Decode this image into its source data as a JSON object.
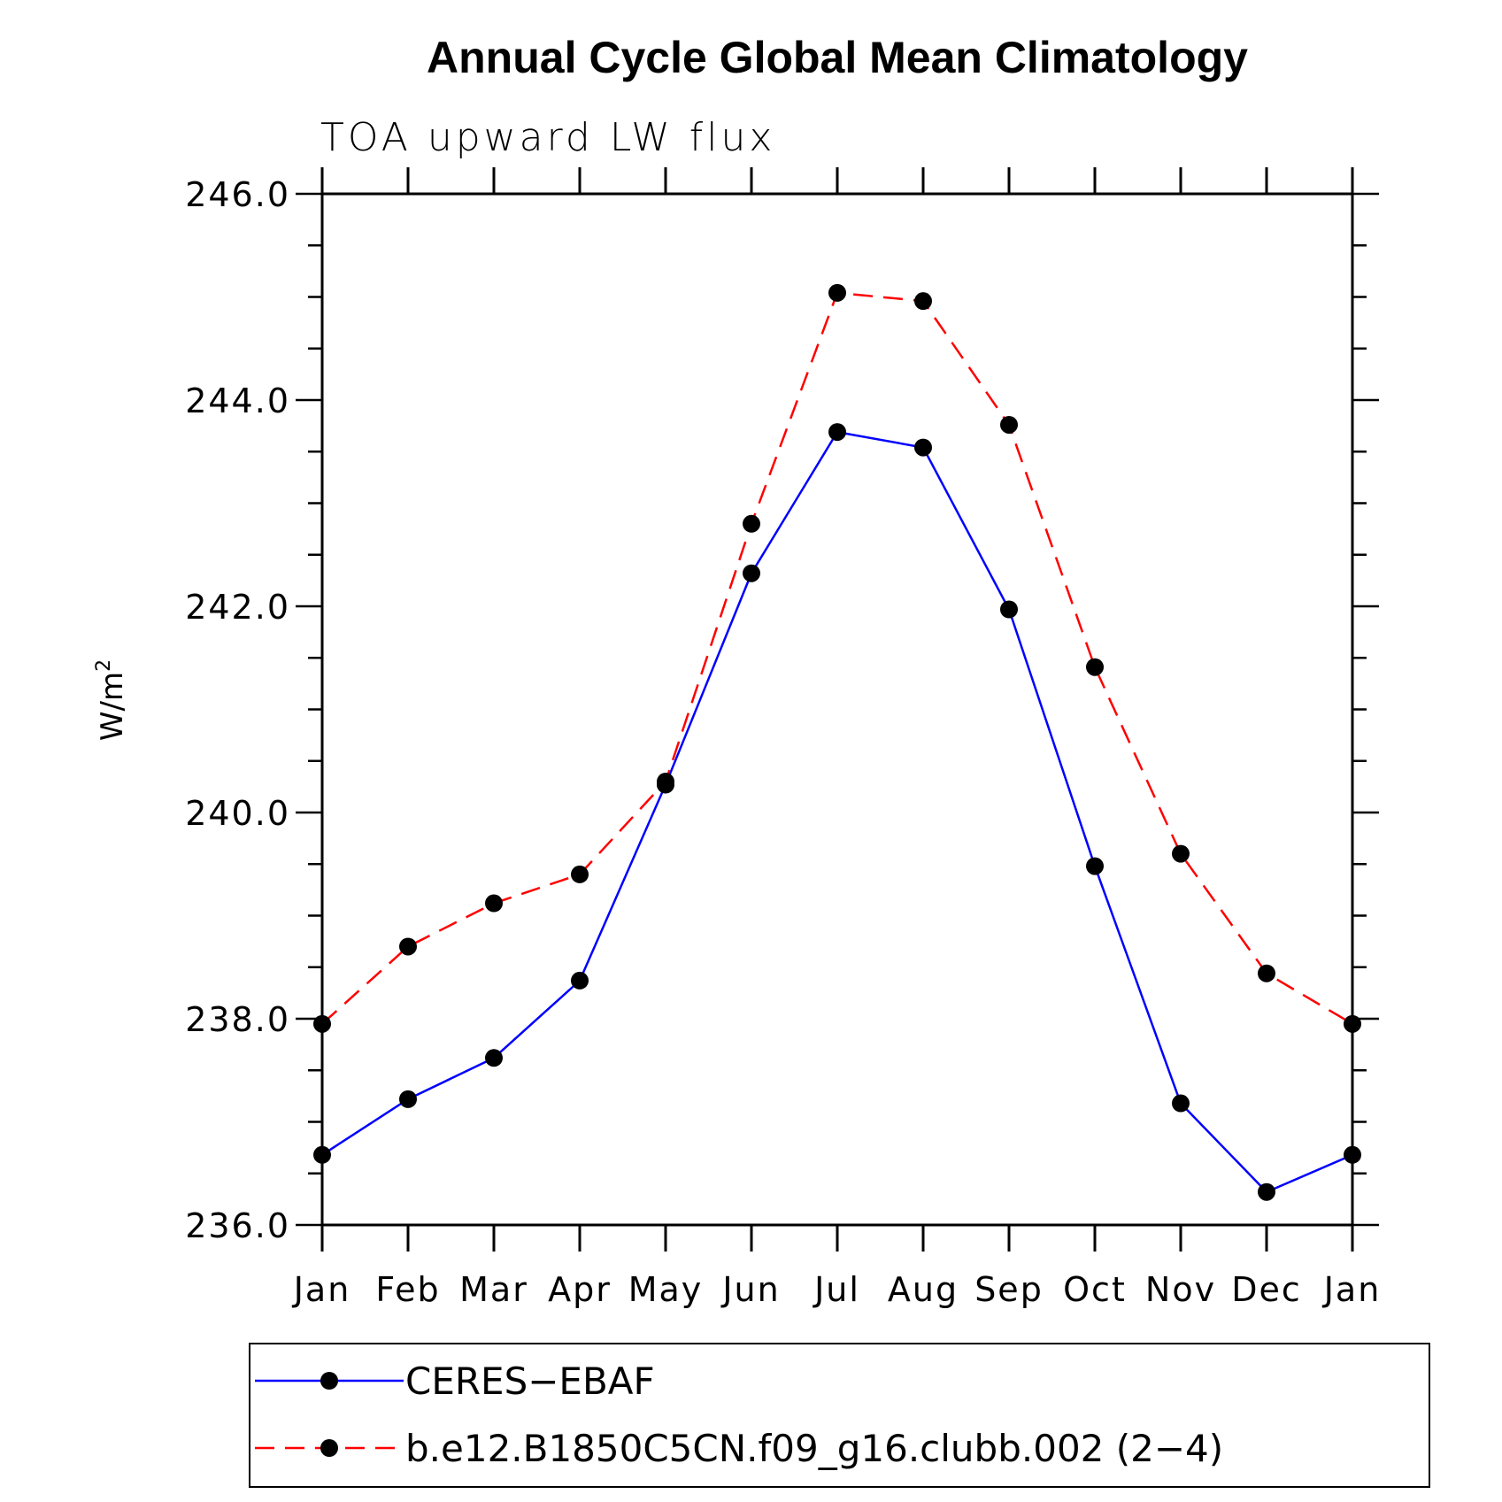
{
  "chart_data": {
    "type": "line",
    "title": "Annual Cycle Global Mean Climatology",
    "subtitle": "TOA upward LW flux",
    "ylabel": "W/m",
    "ylabel_superscript": "2",
    "ylim": [
      236.0,
      246.0
    ],
    "yticks": [
      "236.0",
      "238.0",
      "240.0",
      "242.0",
      "244.0",
      "246.0"
    ],
    "categories": [
      "Jan",
      "Feb",
      "Mar",
      "Apr",
      "May",
      "Jun",
      "Jul",
      "Aug",
      "Sep",
      "Oct",
      "Nov",
      "Dec",
      "Jan"
    ],
    "grid": false,
    "legend_placement": "bottom",
    "series": [
      {
        "name": "CERES−EBAF",
        "color": "#0000ff",
        "dash": "solid",
        "marker": "circle",
        "values": [
          236.68,
          237.22,
          237.62,
          238.37,
          240.27,
          242.32,
          243.69,
          243.54,
          241.97,
          239.48,
          237.18,
          236.32,
          236.68
        ]
      },
      {
        "name": "b.e12.B1850C5CN.f09_g16.clubb.002 (2−4)",
        "color": "#ff0000",
        "dash": "dashed",
        "marker": "circle",
        "values": [
          237.95,
          238.7,
          239.12,
          239.4,
          240.3,
          242.8,
          245.04,
          244.96,
          243.76,
          241.41,
          239.6,
          238.44,
          237.95
        ]
      }
    ]
  }
}
